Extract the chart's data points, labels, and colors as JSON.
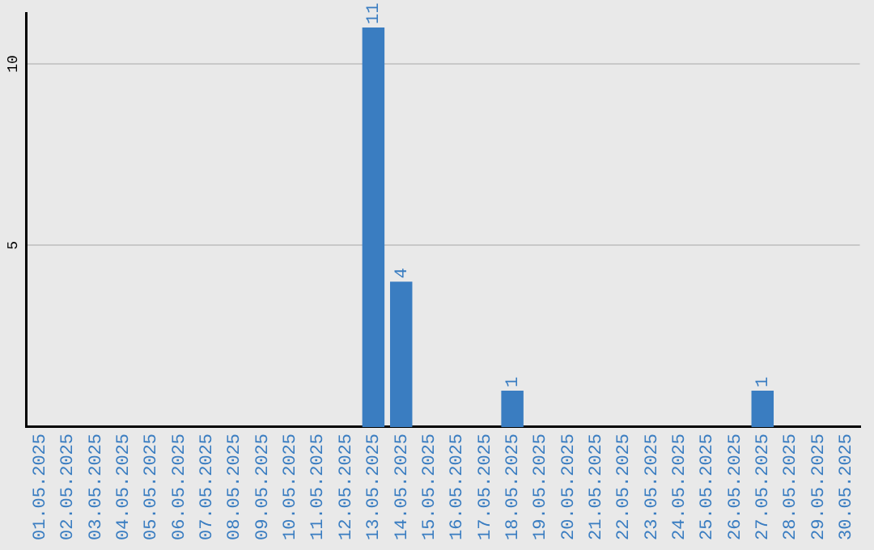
{
  "chart_data": {
    "type": "bar",
    "categories": [
      "01.05.2025",
      "02.05.2025",
      "03.05.2025",
      "04.05.2025",
      "05.05.2025",
      "06.05.2025",
      "07.05.2025",
      "08.05.2025",
      "09.05.2025",
      "10.05.2025",
      "11.05.2025",
      "12.05.2025",
      "13.05.2025",
      "14.05.2025",
      "15.05.2025",
      "16.05.2025",
      "17.05.2025",
      "18.05.2025",
      "19.05.2025",
      "20.05.2025",
      "21.05.2025",
      "22.05.2025",
      "23.05.2025",
      "24.05.2025",
      "25.05.2025",
      "26.05.2025",
      "27.05.2025",
      "28.05.2025",
      "29.05.2025",
      "30.05.2025"
    ],
    "values": [
      0,
      0,
      0,
      0,
      0,
      0,
      0,
      0,
      0,
      0,
      0,
      0,
      11,
      4,
      0,
      0,
      0,
      1,
      0,
      0,
      0,
      0,
      0,
      0,
      0,
      0,
      1,
      0,
      0,
      0
    ],
    "value_labels": [
      null,
      null,
      null,
      null,
      null,
      null,
      null,
      null,
      null,
      null,
      null,
      null,
      "11",
      "4",
      null,
      null,
      null,
      "1",
      null,
      null,
      null,
      null,
      null,
      null,
      null,
      null,
      "1",
      null,
      null,
      null
    ],
    "color": "#3a7dc1",
    "ylim": [
      0,
      11.4
    ],
    "yticks": [
      5,
      10
    ],
    "grid": "y",
    "legend": false
  }
}
